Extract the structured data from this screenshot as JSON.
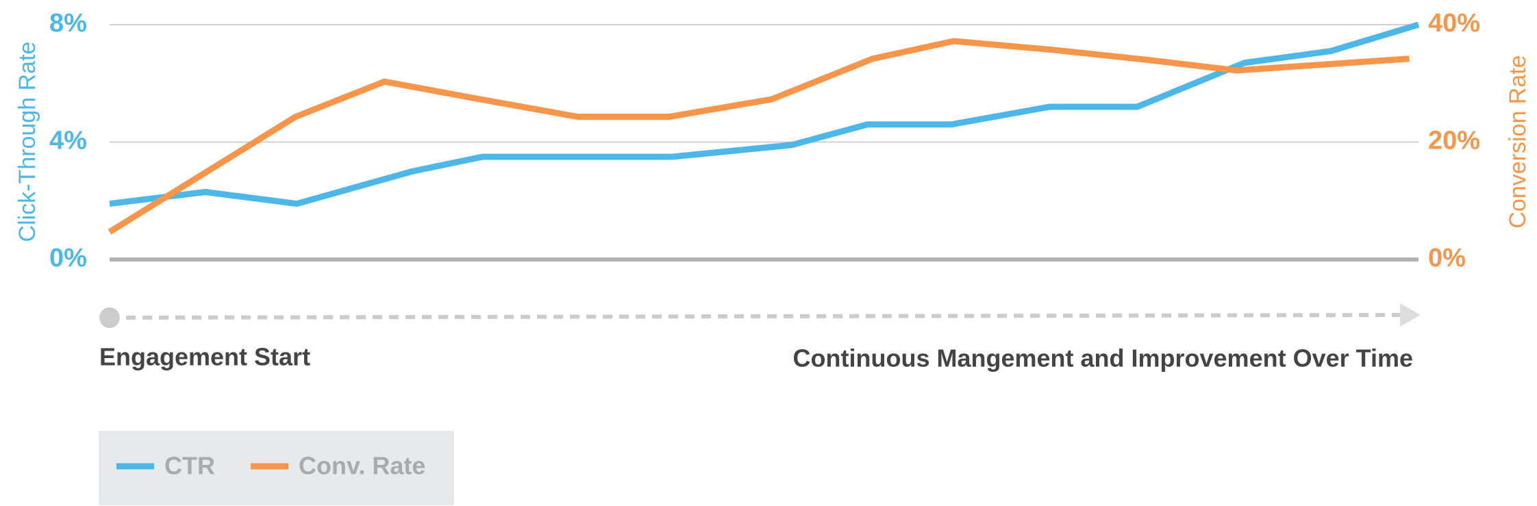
{
  "chart_data": {
    "type": "line",
    "y_label": "Click-Through Rate",
    "y2_label": "Conversion Rate",
    "annotations": [
      "Engagement Start",
      "Continuous Mangement and Improvement Over Time"
    ],
    "xlim": [
      0,
      100
    ],
    "ylim": [
      0,
      8
    ],
    "yticks": [
      {
        "value": 0,
        "label": "0%"
      },
      {
        "value": 4,
        "label": "4%"
      },
      {
        "value": 8,
        "label": "8%"
      }
    ],
    "y2lim": [
      0,
      40
    ],
    "y2ticks": [
      {
        "value": 0,
        "label": "0%"
      },
      {
        "value": 20,
        "label": "20%"
      },
      {
        "value": 40,
        "label": "40%"
      }
    ],
    "grid": true,
    "legend": "bottom-left",
    "series": [
      {
        "name": "CTR",
        "color": "#4db8e8",
        "x": [
          0,
          7.3,
          14.3,
          23.1,
          28.5,
          35.8,
          43,
          52.1,
          57.9,
          64.3,
          71.8,
          78.5,
          86.7,
          93.3,
          100
        ],
        "values": [
          1.9,
          2.3,
          1.9,
          3.0,
          3.5,
          3.5,
          3.5,
          3.9,
          4.6,
          4.6,
          5.2,
          5.2,
          6.7,
          7.1,
          8.0
        ]
      },
      {
        "name": "Conv. Rate",
        "color": "#f7964a",
        "axis": "y2",
        "x": [
          0,
          14.2,
          21,
          28.3,
          35.8,
          42.7,
          50.6,
          58.3,
          64.5,
          72.1,
          79.3,
          86.1,
          99.3
        ],
        "values": [
          4.7,
          24.3,
          30.3,
          27.3,
          24.3,
          24.3,
          27.3,
          34.2,
          37.2,
          35.7,
          34,
          32.2,
          34.2
        ]
      }
    ]
  }
}
